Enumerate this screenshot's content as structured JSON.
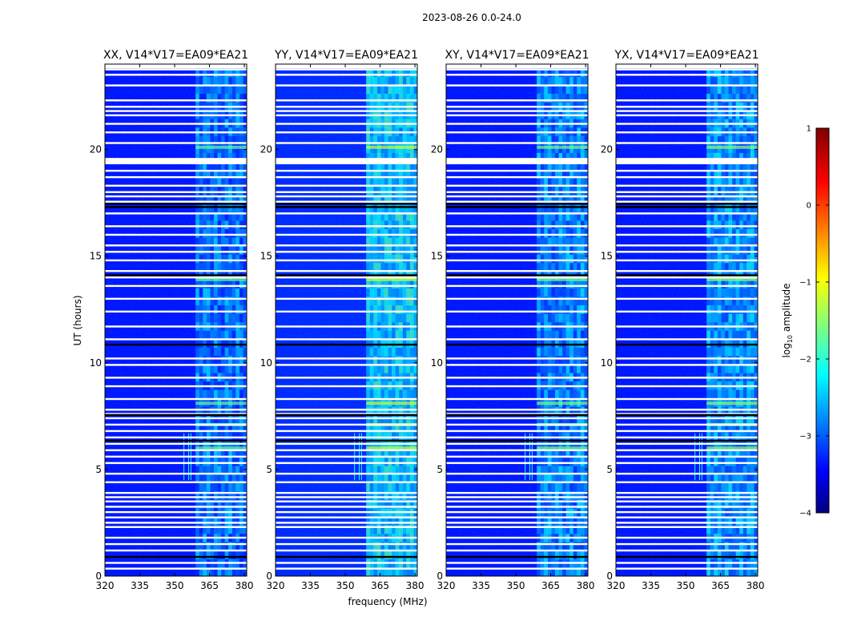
{
  "chart_data": {
    "type": "heatmap",
    "suptitle": "2023-08-26 0.0-24.0",
    "xlabel": "frequency (MHz)",
    "ylabel": "UT (hours)",
    "xlim": [
      320,
      381
    ],
    "ylim": [
      0,
      24
    ],
    "x_ticks": [
      320,
      335,
      350,
      365,
      380
    ],
    "y_ticks": [
      0,
      5,
      10,
      15,
      20
    ],
    "colormap": "jet",
    "colorbar": {
      "label": "log10 amplitude",
      "label_main": "log",
      "label_sub": "10",
      "label_rest": " amplitude",
      "min": -4,
      "max": 1,
      "ticks": [
        -4,
        -3,
        -2,
        -1,
        0,
        1
      ],
      "tick_labels": [
        "−4",
        "−3",
        "−2",
        "−1",
        "0",
        "1"
      ]
    },
    "panels": [
      {
        "title": "XX, V14*V17=EA09*EA21",
        "background_level": -3.3,
        "band_level": -2.3
      },
      {
        "title": "YY, V14*V17=EA09*EA21",
        "background_level": -3.2,
        "band_level": -1.8
      },
      {
        "title": "XY, V14*V17=EA09*EA21",
        "background_level": -3.3,
        "band_level": -2.2
      },
      {
        "title": "YX, V14*V17=EA09*EA21",
        "background_level": -3.3,
        "band_level": -2.1
      }
    ],
    "rfi_band_mhz": [
      359,
      381
    ],
    "flagged_hours_white": [
      0.35,
      0.62,
      1.2,
      1.5,
      1.8,
      2.3,
      2.5,
      2.75,
      3.0,
      3.25,
      3.5,
      3.7,
      3.9,
      4.4,
      4.8,
      5.3,
      5.6,
      5.9,
      6.2,
      6.5,
      6.8,
      7.1,
      7.4,
      7.6,
      7.8,
      8.3,
      8.9,
      9.3,
      9.9,
      10.2,
      11.1,
      11.7,
      12.4,
      13.0,
      13.6,
      14.0,
      14.3,
      14.8,
      15.2,
      15.5,
      16.0,
      16.4,
      17.0,
      17.55,
      17.8,
      18.0,
      18.3,
      18.7,
      19.0,
      19.35,
      19.5,
      20.3,
      20.8,
      21.2,
      21.6,
      21.8,
      22.0,
      22.3,
      23.0,
      23.5,
      23.75
    ],
    "flagged_hours_black": [
      0.9,
      6.35,
      7.55,
      10.85,
      14.1,
      17.3,
      17.45
    ]
  }
}
